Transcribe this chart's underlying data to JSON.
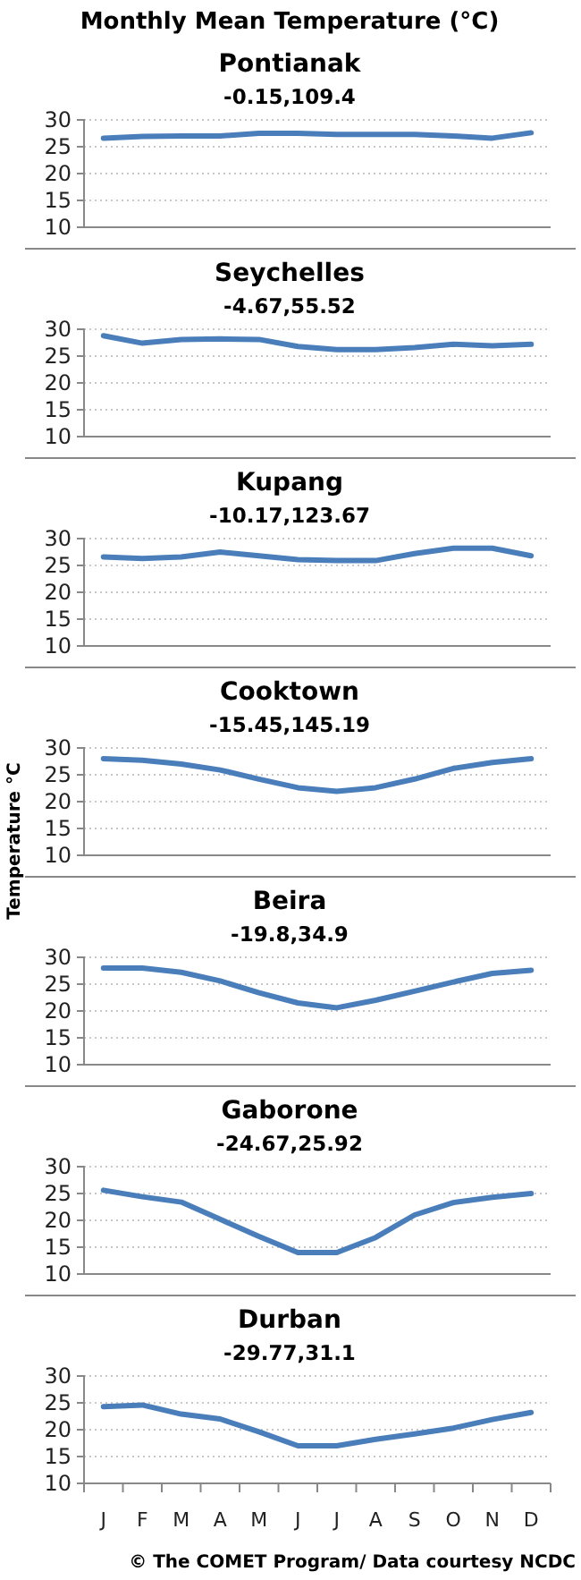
{
  "chart_data": [
    {
      "type": "line",
      "title": "Pontianak",
      "subtitle": "-0.15,109.4",
      "annotations": [
        "Monthly Mean Temperature (°C)"
      ],
      "categories": [
        null,
        null,
        null,
        null,
        null,
        null,
        null,
        null,
        null,
        null,
        null,
        null
      ],
      "series": [
        {
          "color": "#4a7ebb",
          "values": [
            26.6,
            26.9,
            27,
            27,
            27.5,
            27.5,
            27.3,
            27.3,
            27.3,
            27,
            26.6,
            27.6
          ]
        }
      ],
      "ylim": [
        10,
        30
      ],
      "yticks": [
        10,
        15,
        20,
        25,
        30
      ],
      "grid": "y",
      "tick_labels": "y"
    },
    {
      "type": "line",
      "title": "Seychelles",
      "subtitle": "-4.67,55.52",
      "categories": [
        null,
        null,
        null,
        null,
        null,
        null,
        null,
        null,
        null,
        null,
        null,
        null
      ],
      "series": [
        {
          "color": "#4a7ebb",
          "values": [
            28.8,
            27.4,
            28.1,
            28.2,
            28.1,
            26.8,
            26.2,
            26.2,
            26.6,
            27.2,
            26.9,
            27.2
          ]
        }
      ],
      "ylim": [
        10,
        30
      ],
      "yticks": [
        10,
        15,
        20,
        25,
        30
      ],
      "grid": "y",
      "tick_labels": "y"
    },
    {
      "type": "line",
      "title": "Kupang",
      "subtitle": "-10.17,123.67",
      "categories": [
        null,
        null,
        null,
        null,
        null,
        null,
        null,
        null,
        null,
        null,
        null,
        null
      ],
      "series": [
        {
          "color": "#4a7ebb",
          "values": [
            26.6,
            26.3,
            26.6,
            27.5,
            26.8,
            26.1,
            25.9,
            25.9,
            27.2,
            28.2,
            28.2,
            26.8
          ]
        }
      ],
      "ylim": [
        10,
        30
      ],
      "yticks": [
        10,
        15,
        20,
        25,
        30
      ],
      "grid": "y",
      "tick_labels": "y"
    },
    {
      "type": "line",
      "title": "Cooktown",
      "subtitle": "-15.45,145.19",
      "ylabel": "Temperature °C",
      "categories": [
        null,
        null,
        null,
        null,
        null,
        null,
        null,
        null,
        null,
        null,
        null,
        null
      ],
      "series": [
        {
          "color": "#4a7ebb",
          "values": [
            28,
            27.7,
            27,
            25.9,
            24.2,
            22.6,
            21.9,
            22.6,
            24.2,
            26.2,
            27.3,
            28
          ]
        }
      ],
      "ylim": [
        10,
        30
      ],
      "yticks": [
        10,
        15,
        20,
        25,
        30
      ],
      "grid": "y",
      "tick_labels": "y"
    },
    {
      "type": "line",
      "title": "Beira",
      "subtitle": "-19.8,34.9",
      "categories": [
        null,
        null,
        null,
        null,
        null,
        null,
        null,
        null,
        null,
        null,
        null,
        null
      ],
      "series": [
        {
          "color": "#4a7ebb",
          "values": [
            28,
            28,
            27.2,
            25.6,
            23.4,
            21.5,
            20.6,
            22,
            23.7,
            25.4,
            27,
            27.6
          ]
        }
      ],
      "ylim": [
        10,
        30
      ],
      "yticks": [
        10,
        15,
        20,
        25,
        30
      ],
      "grid": "y",
      "tick_labels": "y"
    },
    {
      "type": "line",
      "title": "Gaborone",
      "subtitle": "-24.67,25.92",
      "categories": [
        null,
        null,
        null,
        null,
        null,
        null,
        null,
        null,
        null,
        null,
        null,
        null
      ],
      "series": [
        {
          "color": "#4a7ebb",
          "values": [
            25.6,
            24.4,
            23.4,
            20.2,
            17,
            14,
            14,
            16.8,
            21,
            23.3,
            24.3,
            25
          ]
        }
      ],
      "ylim": [
        10,
        30
      ],
      "yticks": [
        10,
        15,
        20,
        25,
        30
      ],
      "grid": "y",
      "tick_labels": "y"
    },
    {
      "type": "line",
      "title": "Durban",
      "subtitle": "-29.77,31.1",
      "annotations": [
        "© The COMET Program/ Data courtesy NCDC"
      ],
      "categories": [
        "J",
        "F",
        "M",
        "A",
        "M",
        "J",
        "J",
        "A",
        "S",
        "O",
        "N",
        "D"
      ],
      "series": [
        {
          "color": "#4a7ebb",
          "values": [
            24.3,
            24.6,
            22.9,
            22,
            19.6,
            17,
            17,
            18.2,
            19.2,
            20.3,
            21.9,
            23.2
          ]
        }
      ],
      "ylim": [
        10,
        30
      ],
      "yticks": [
        10,
        15,
        20,
        25,
        30
      ],
      "grid": "y"
    }
  ]
}
